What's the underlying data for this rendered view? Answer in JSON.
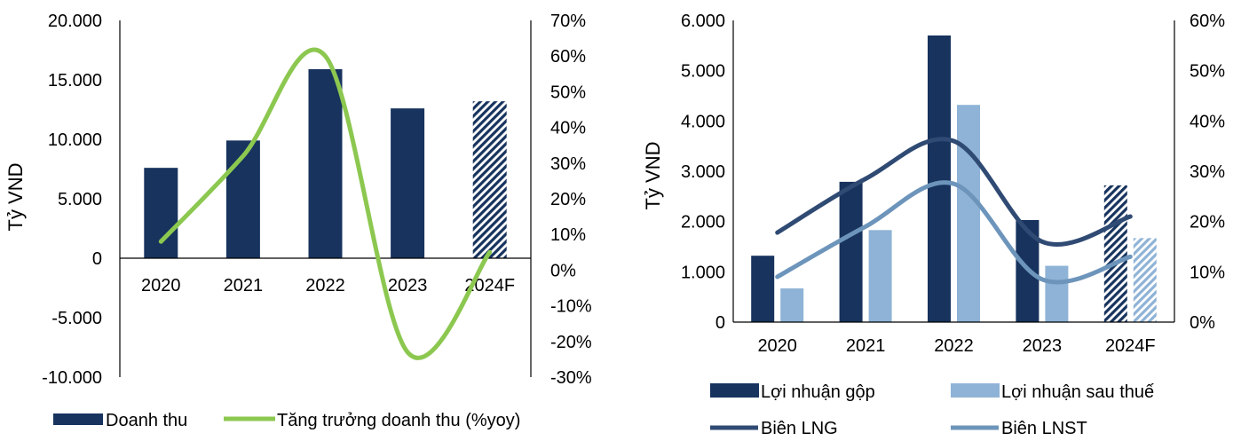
{
  "colors": {
    "navy": "#17335E",
    "light_blue": "#8FB3D6",
    "green": "#8CC850",
    "line_navy": "#2F4A73",
    "line_steel": "#6D95BB",
    "axis": "#000000"
  },
  "chart_data": [
    {
      "type": "bar",
      "categories": [
        "2020",
        "2021",
        "2022",
        "2023",
        "2024F"
      ],
      "ylabel": "Tỷ VND",
      "ylim": [
        -10000,
        20000
      ],
      "y2lim": [
        -0.3,
        0.7
      ],
      "yticks": [
        "-10.000",
        "-5.000",
        "0",
        "5.000",
        "10.000",
        "15.000",
        "20.000"
      ],
      "y2ticks": [
        "-30%",
        "-20%",
        "-10%",
        "0%",
        "10%",
        "20%",
        "30%",
        "40%",
        "50%",
        "60%",
        "70%"
      ],
      "series": [
        {
          "name": "Doanh thu",
          "kind": "bar",
          "axis": "left",
          "color": "#17335E",
          "hatched_last": true,
          "values": [
            7600,
            9900,
            15900,
            12600,
            13200
          ]
        },
        {
          "name": "Tăng trưởng doanh thu (%yoy)",
          "kind": "line",
          "axis": "right",
          "color": "#8CC850",
          "values": [
            0.08,
            0.32,
            0.6,
            -0.23,
            0.05
          ]
        }
      ],
      "legend_position": "bottom"
    },
    {
      "type": "bar",
      "categories": [
        "2020",
        "2021",
        "2022",
        "2023",
        "2024F"
      ],
      "ylabel": "Tỷ VND",
      "ylim": [
        0,
        6000
      ],
      "y2lim": [
        0,
        0.6
      ],
      "yticks": [
        "0",
        "1.000",
        "2.000",
        "3.000",
        "4.000",
        "5.000",
        "6.000"
      ],
      "y2ticks": [
        "0%",
        "10%",
        "20%",
        "30%",
        "40%",
        "50%",
        "60%"
      ],
      "series": [
        {
          "name": "Lợi nhuận gộp",
          "kind": "bar",
          "axis": "left",
          "color": "#17335E",
          "hatched_last": true,
          "values": [
            1320,
            2790,
            5700,
            2030,
            2720
          ]
        },
        {
          "name": "Lợi nhuận sau thuế",
          "kind": "bar",
          "axis": "left",
          "color": "#8FB3D6",
          "hatched_last": true,
          "values": [
            670,
            1830,
            4320,
            1120,
            1670
          ]
        },
        {
          "name": "Biên LNG",
          "kind": "line",
          "axis": "right",
          "color": "#2F4A73",
          "values": [
            0.178,
            0.285,
            0.36,
            0.16,
            0.21
          ]
        },
        {
          "name": "Biên LNST",
          "kind": "line",
          "axis": "right",
          "color": "#6D95BB",
          "values": [
            0.09,
            0.19,
            0.275,
            0.085,
            0.13
          ]
        }
      ],
      "legend_position": "bottom"
    }
  ]
}
